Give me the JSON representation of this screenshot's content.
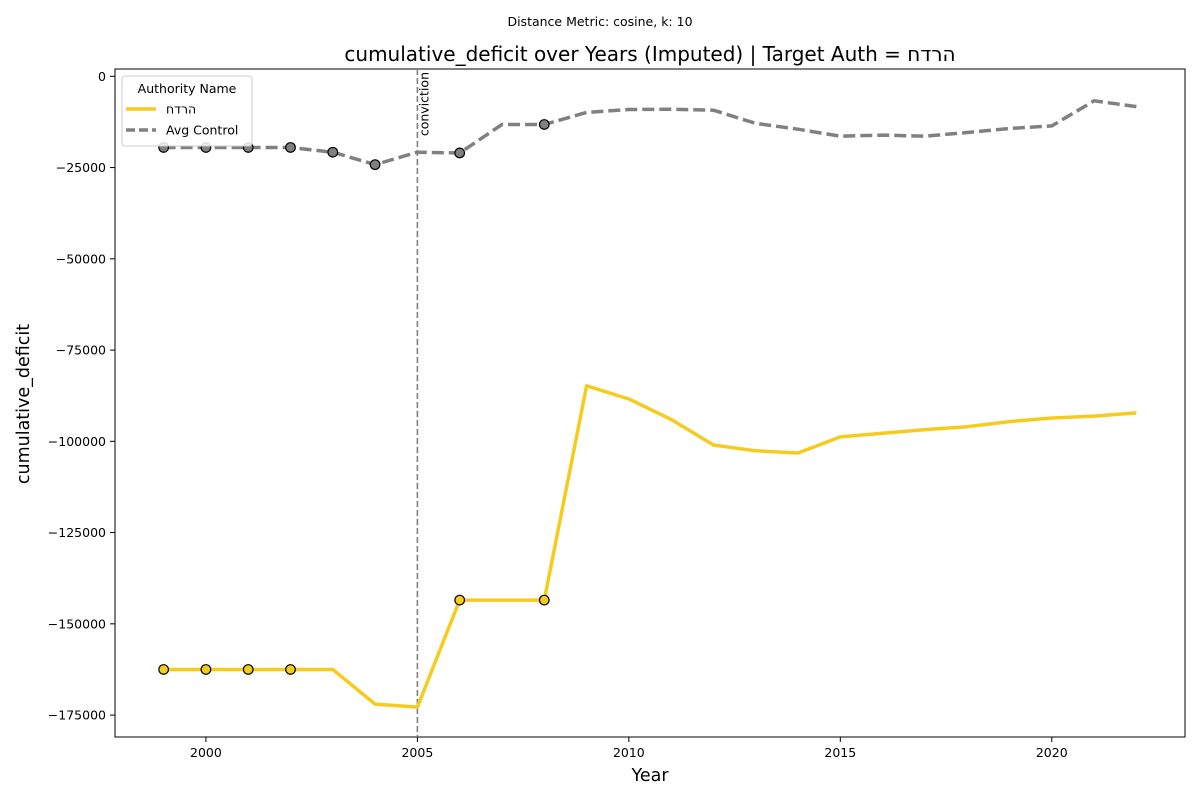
{
  "suptitle": "Distance Metric: cosine, k: 10",
  "chart_data": {
    "type": "line",
    "title": "cumulative_deficit over Years (Imputed) | Target Auth = הרדח",
    "xlabel": "Year",
    "ylabel": "cumulative_deficit",
    "xlim": [
      1997.85,
      2023.15
    ],
    "ylim": [
      -181000,
      2000
    ],
    "x_ticks": [
      2000,
      2005,
      2010,
      2015,
      2020
    ],
    "y_ticks": [
      0,
      -25000,
      -50000,
      -75000,
      -100000,
      -125000,
      -150000,
      -175000
    ],
    "x_tick_labels": [
      "2000",
      "2005",
      "2010",
      "2015",
      "2020"
    ],
    "y_tick_labels": [
      "0",
      "−25000",
      "−50000",
      "−75000",
      "−100000",
      "−125000",
      "−150000",
      "−175000"
    ],
    "grid": false,
    "legend": {
      "title": "Authority Name",
      "placement": "top-left"
    },
    "annotations": [
      {
        "type": "vline",
        "x": 2005,
        "label": "conviction",
        "color": "#808080",
        "style": "dashed"
      }
    ],
    "series": [
      {
        "name": "הרדח",
        "color": "#f5cc1e",
        "style": "solid",
        "x": [
          1999,
          2000,
          2001,
          2002,
          2003,
          2004,
          2005,
          2006,
          2007,
          2008,
          2009,
          2010,
          2011,
          2012,
          2013,
          2014,
          2015,
          2016,
          2017,
          2018,
          2019,
          2020,
          2021,
          2022
        ],
        "y": [
          -162500,
          -162500,
          -162500,
          -162500,
          -162500,
          -172000,
          -172800,
          -143500,
          -143500,
          -143500,
          -84800,
          -88400,
          -94000,
          -101000,
          -102600,
          -103200,
          -98800,
          -97800,
          -96800,
          -96000,
          -94600,
          -93600,
          -93100,
          -92200
        ],
        "markers_x": [
          1999,
          2000,
          2001,
          2002,
          2006,
          2008
        ],
        "markers_y": [
          -162500,
          -162500,
          -162500,
          -162500,
          -143500,
          -143500
        ]
      },
      {
        "name": "Avg Control",
        "color": "#808080",
        "style": "dashed",
        "x": [
          1999,
          2000,
          2001,
          2002,
          2003,
          2004,
          2005,
          2006,
          2007,
          2008,
          2009,
          2010,
          2011,
          2012,
          2013,
          2014,
          2015,
          2016,
          2017,
          2018,
          2019,
          2020,
          2021,
          2022
        ],
        "y": [
          -19500,
          -19500,
          -19500,
          -19500,
          -20800,
          -24200,
          -20800,
          -21000,
          -13200,
          -13200,
          -9900,
          -9100,
          -9000,
          -9300,
          -12900,
          -14500,
          -16400,
          -16100,
          -16400,
          -15400,
          -14300,
          -13600,
          -6700,
          -8300
        ],
        "markers_x": [
          1999,
          2000,
          2001,
          2002,
          2003,
          2004,
          2006,
          2008
        ],
        "markers_y": [
          -19500,
          -19500,
          -19500,
          -19500,
          -20800,
          -24200,
          -21000,
          -13200
        ]
      }
    ]
  }
}
